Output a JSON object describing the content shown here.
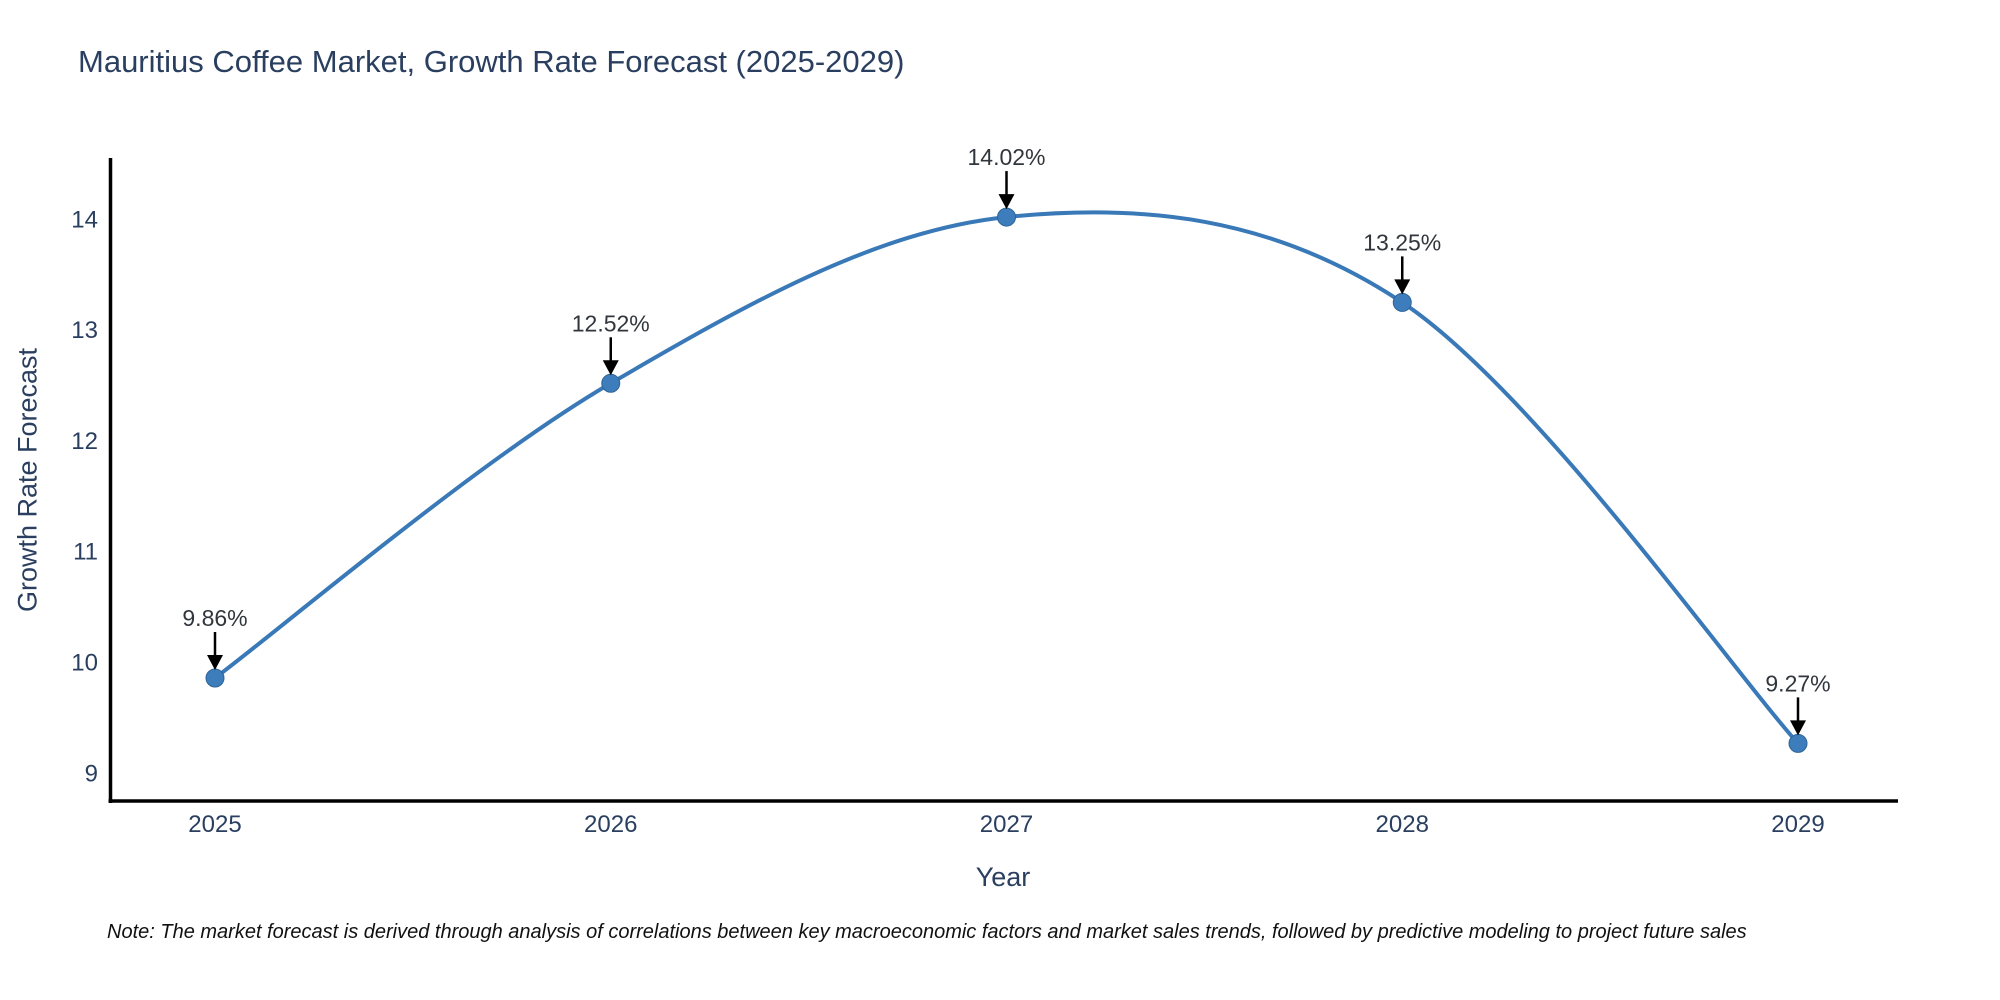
{
  "page": {
    "background": "#ffffff"
  },
  "chart_data": {
    "type": "line",
    "title": "Mauritius Coffee Market, Growth Rate Forecast (2025-2029)",
    "xlabel": "Year",
    "ylabel": "Growth Rate Forecast",
    "x": [
      2025,
      2026,
      2027,
      2028,
      2029
    ],
    "values": [
      9.86,
      12.52,
      14.02,
      13.25,
      9.27
    ],
    "point_labels": [
      "9.86%",
      "12.52%",
      "14.02%",
      "13.25%",
      "9.27%"
    ],
    "x_tick_labels": [
      "2025",
      "2026",
      "2027",
      "2028",
      "2029"
    ],
    "y_ticks": [
      9,
      10,
      11,
      12,
      13,
      14
    ],
    "ylim": [
      8.7,
      14.8
    ],
    "grid": false,
    "legend_position": "none",
    "line_shape": "spline",
    "annotation_arrows": "down",
    "colors": {
      "line": "#3a79b8",
      "marker": "#3d7dbc",
      "marker_edge": "#2f6496",
      "axis": "#000000",
      "tick_text": "#2a3f5f",
      "annotation_text": "#31363c",
      "arrow": "#000000"
    }
  },
  "note": {
    "text": "Note: The market forecast is derived through analysis of correlations between key macroeconomic factors and market sales trends, followed by predictive modeling to project future sales"
  }
}
